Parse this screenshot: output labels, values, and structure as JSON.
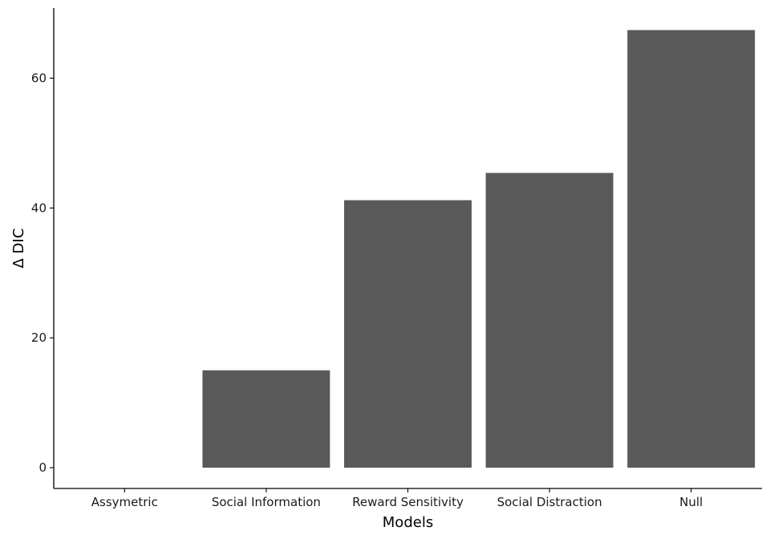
{
  "chart_data": {
    "type": "bar",
    "categories": [
      "Assymetric",
      "Social Information",
      "Reward Sensitivity",
      "Social Distraction",
      "Null"
    ],
    "values": [
      0,
      15,
      41.2,
      45.4,
      67.4
    ],
    "xlabel": "Models",
    "ylabel": "Δ DIC",
    "ylim": [
      -3.2,
      70.8
    ],
    "yticks": [
      0,
      20,
      40,
      60
    ],
    "grid": false,
    "legend": "none",
    "bar_color": "#595959",
    "axis_color": "#000000",
    "text_color": "#1a1a1a"
  }
}
